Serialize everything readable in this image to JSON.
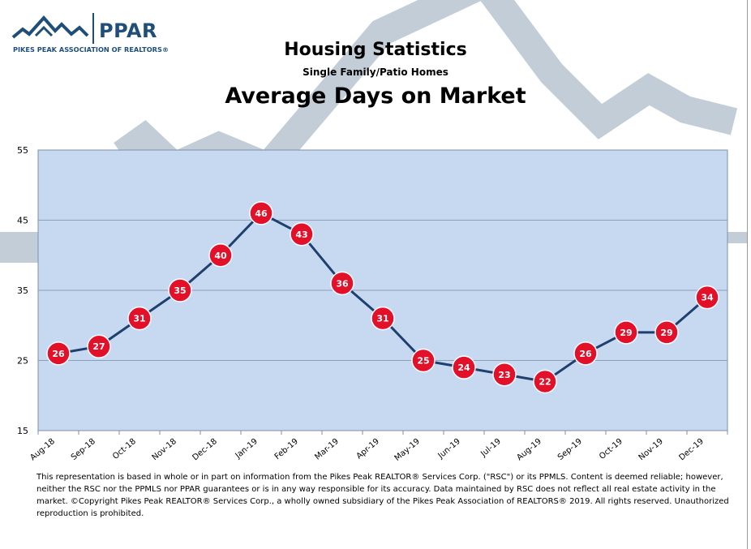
{
  "logo": {
    "name": "PPAR",
    "tagline": "PIKES PEAK ASSOCIATION OF REALTORS®"
  },
  "header": {
    "title": "Housing Statistics",
    "subtitle": "Single Family/Patio Homes",
    "main_title": "Average Days on Market"
  },
  "chart_data": {
    "type": "line",
    "title": "Average Days on Market",
    "categories": [
      "Aug-18",
      "Sep-18",
      "Oct-18",
      "Nov-18",
      "Dec-18",
      "Jan-19",
      "Feb-19",
      "Mar-19",
      "Apr-19",
      "May-19",
      "Jun-19",
      "Jul-19",
      "Aug-19",
      "Sep-19",
      "Oct-19",
      "Nov-19",
      "Dec-19"
    ],
    "series": [
      {
        "values": [
          26,
          27,
          31,
          35,
          40,
          46,
          43,
          36,
          31,
          25,
          24,
          23,
          22,
          26,
          29,
          29,
          34
        ]
      }
    ],
    "ylim": [
      15,
      55
    ],
    "yticks": [
      15,
      25,
      35,
      45,
      55
    ],
    "grid": true,
    "colors": {
      "plot_bg": "#c6d9f1",
      "line": "#1f3f6e",
      "marker": "#e3102a",
      "marker_label": "#ffffff",
      "gridline": "#8ea0b8"
    }
  },
  "disclaimer": "This representation is based in whole or in part on information from the Pikes Peak REALTOR® Services Corp. (\"RSC\") or its PPMLS. Content is deemed reliable; however, neither the RSC nor the PPMLS nor PPAR guarantees or is in any way responsible for its accuracy. Data maintained by RSC does not reflect all real estate activity in the market. ©Copyright Pikes Peak REALTOR® Services Corp., a wholly owned subsidiary of the Pikes Peak Association of REALTORS® 2019. All rights reserved. Unauthorized reproduction is prohibited."
}
